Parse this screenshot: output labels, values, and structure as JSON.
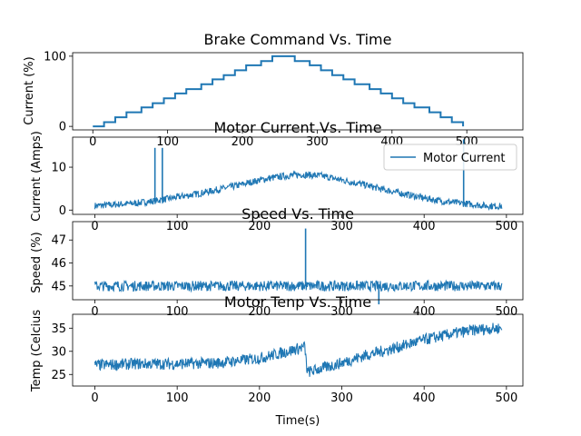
{
  "chart_data": [
    {
      "type": "line",
      "title": "Brake Command Vs. Time",
      "xlabel": "",
      "ylabel": "Current (%)",
      "xlim": [
        -27,
        575
      ],
      "ylim": [
        -5,
        105
      ],
      "xticks": [
        0,
        100,
        200,
        300,
        400,
        500
      ],
      "yticks": [
        0,
        100
      ],
      "x": [
        0,
        15,
        30,
        45,
        65,
        80,
        95,
        110,
        125,
        145,
        160,
        175,
        190,
        205,
        225,
        240,
        255,
        270,
        290,
        305,
        320,
        335,
        350,
        370,
        385,
        400,
        415,
        430,
        450,
        465,
        480,
        495
      ],
      "series": [
        {
          "values": [
            0,
            6,
            13,
            20,
            27,
            33,
            40,
            47,
            53,
            60,
            67,
            73,
            80,
            87,
            93,
            100,
            100,
            93,
            87,
            80,
            73,
            67,
            60,
            53,
            47,
            40,
            33,
            27,
            20,
            13,
            6,
            0
          ],
          "color": "#1f77b4"
        }
      ]
    },
    {
      "type": "line",
      "title": "Motor Current Vs. Time",
      "xlabel": "",
      "ylabel": "Current (Amps)",
      "xlim": [
        -27,
        520
      ],
      "ylim": [
        -1,
        17
      ],
      "xticks": [
        0,
        100,
        200,
        300,
        400,
        500
      ],
      "yticks": [
        0,
        10
      ],
      "legend": {
        "position": "top-right",
        "entries": [
          "Motor Current"
        ]
      },
      "x": [
        0,
        25,
        50,
        75,
        100,
        125,
        150,
        175,
        200,
        225,
        250,
        275,
        300,
        325,
        350,
        375,
        400,
        425,
        450,
        475,
        495
      ],
      "series": [
        {
          "name": "Motor Current",
          "values": [
            1.0,
            1.3,
            1.6,
            2.2,
            3.0,
            3.8,
            4.8,
            5.8,
            7.0,
            7.8,
            8.3,
            8.0,
            7.0,
            6.0,
            4.8,
            3.8,
            2.8,
            2.0,
            1.5,
            1.0,
            0.9
          ],
          "spread": 1.6,
          "color": "#1f77b4",
          "spikes": [
            {
              "x": 73,
              "y": 14.5
            },
            {
              "x": 82,
              "y": 14.5
            },
            {
              "x": 448,
              "y": 16.5
            }
          ]
        }
      ]
    },
    {
      "type": "line",
      "title": "Speed Vs. Time",
      "xlabel": "",
      "ylabel": "Speed (%)",
      "xlim": [
        -27,
        520
      ],
      "ylim": [
        44.4,
        47.8
      ],
      "xticks": [
        0,
        100,
        200,
        300,
        400,
        500
      ],
      "yticks": [
        45,
        46,
        47
      ],
      "x": [
        0,
        100,
        200,
        250,
        300,
        400,
        495
      ],
      "series": [
        {
          "values": [
            45.0,
            45.0,
            45.0,
            45.0,
            45.0,
            45.0,
            45.0
          ],
          "spread": 0.45,
          "color": "#1f77b4",
          "spikes": [
            {
              "x": 256,
              "y": 47.5
            },
            {
              "x": 345,
              "y": 44.2
            }
          ]
        }
      ]
    },
    {
      "type": "line",
      "title": "Motor Tenp Vs. Time",
      "xlabel": "Time(s)",
      "ylabel": "Temp (Celcius",
      "xlim": [
        -27,
        520
      ],
      "ylim": [
        22.5,
        38
      ],
      "xticks": [
        0,
        100,
        200,
        300,
        400,
        500
      ],
      "yticks": [
        25,
        30,
        35
      ],
      "x": [
        0,
        50,
        100,
        150,
        200,
        230,
        255,
        258,
        280,
        300,
        330,
        360,
        400,
        440,
        470,
        495
      ],
      "series": [
        {
          "values": [
            27.0,
            27.3,
            27.3,
            27.5,
            28.5,
            29.8,
            31.0,
            25.5,
            26.5,
            27.5,
            29.2,
            30.5,
            32.5,
            34.0,
            34.8,
            35.0
          ],
          "spread": 2.5,
          "color": "#1f77b4"
        }
      ]
    }
  ]
}
